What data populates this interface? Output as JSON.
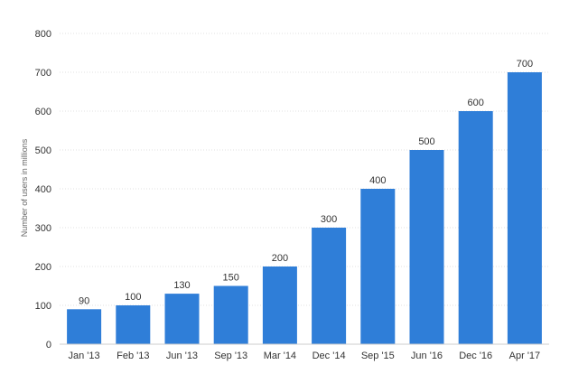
{
  "chart_data": {
    "type": "bar",
    "categories": [
      "Jan '13",
      "Feb '13",
      "Jun '13",
      "Sep '13",
      "Mar '14",
      "Dec '14",
      "Sep '15",
      "Jun '16",
      "Dec '16",
      "Apr '17"
    ],
    "values": [
      90,
      100,
      130,
      150,
      200,
      300,
      400,
      500,
      600,
      700
    ],
    "ylabel": "Number of users in millions",
    "xlabel": "",
    "ylim": [
      0,
      800
    ],
    "yticks": [
      0,
      100,
      200,
      300,
      400,
      500,
      600,
      700,
      800
    ],
    "grid": true,
    "bar_color": "#2f7ed8",
    "data_labels": true
  }
}
